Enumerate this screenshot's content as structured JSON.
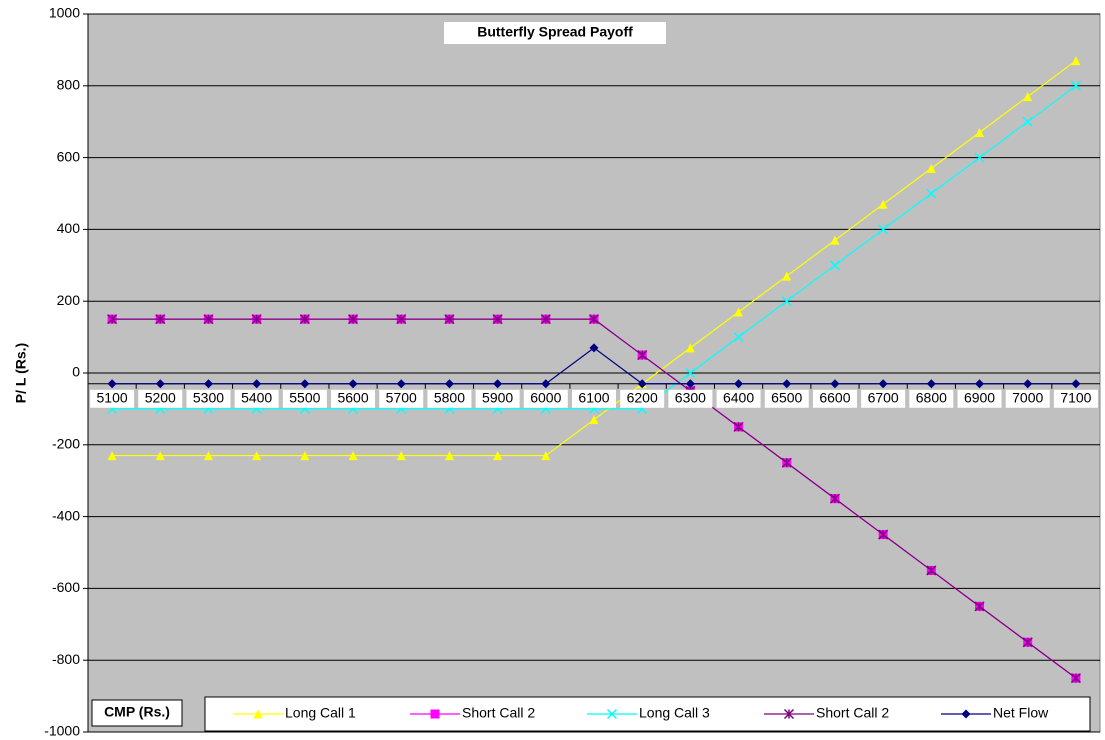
{
  "chart_data": {
    "type": "line",
    "title": "Butterfly Spread Payoff",
    "xlabel": "CMP (Rs.)",
    "ylabel": "P/ L (Rs.)",
    "categories": [
      "5100",
      "5200",
      "5300",
      "5400",
      "5500",
      "5600",
      "5700",
      "5800",
      "5900",
      "6000",
      "6100",
      "6200",
      "6300",
      "6400",
      "6500",
      "6600",
      "6700",
      "6800",
      "6900",
      "7000",
      "7100"
    ],
    "series": [
      {
        "name": "Long Call 1",
        "color": "#ffff00",
        "marker": "triangle",
        "values": [
          -230,
          -230,
          -230,
          -230,
          -230,
          -230,
          -230,
          -230,
          -230,
          -230,
          -130,
          -30,
          70,
          170,
          270,
          370,
          470,
          570,
          670,
          770,
          870
        ]
      },
      {
        "name": "Short Call 2",
        "color": "#ff00ff",
        "marker": "square",
        "values": [
          150,
          150,
          150,
          150,
          150,
          150,
          150,
          150,
          150,
          150,
          150,
          50,
          -50,
          -150,
          -250,
          -350,
          -450,
          -550,
          -650,
          -750,
          -850
        ]
      },
      {
        "name": "Long Call 3",
        "color": "#00ffff",
        "marker": "x",
        "values": [
          -100,
          -100,
          -100,
          -100,
          -100,
          -100,
          -100,
          -100,
          -100,
          -100,
          -100,
          -100,
          0,
          100,
          200,
          300,
          400,
          500,
          600,
          700,
          800
        ]
      },
      {
        "name": "Short Call 2",
        "color": "#800080",
        "marker": "star",
        "values": [
          150,
          150,
          150,
          150,
          150,
          150,
          150,
          150,
          150,
          150,
          150,
          50,
          -50,
          -150,
          -250,
          -350,
          -450,
          -550,
          -650,
          -750,
          -850
        ]
      },
      {
        "name": "Net Flow",
        "color": "#000080",
        "marker": "diamond",
        "values": [
          -30,
          -30,
          -30,
          -30,
          -30,
          -30,
          -30,
          -30,
          -30,
          -30,
          70,
          -30,
          -30,
          -30,
          -30,
          -30,
          -30,
          -30,
          -30,
          -30,
          -30
        ]
      }
    ],
    "ylim": [
      -1000,
      1000
    ],
    "yticks": [
      -1000,
      -800,
      -600,
      -400,
      -200,
      0,
      200,
      400,
      600,
      800,
      1000
    ],
    "xaxis_crosses": -30,
    "grid": true,
    "background": "#c0c0c0",
    "legend": "bottom"
  }
}
